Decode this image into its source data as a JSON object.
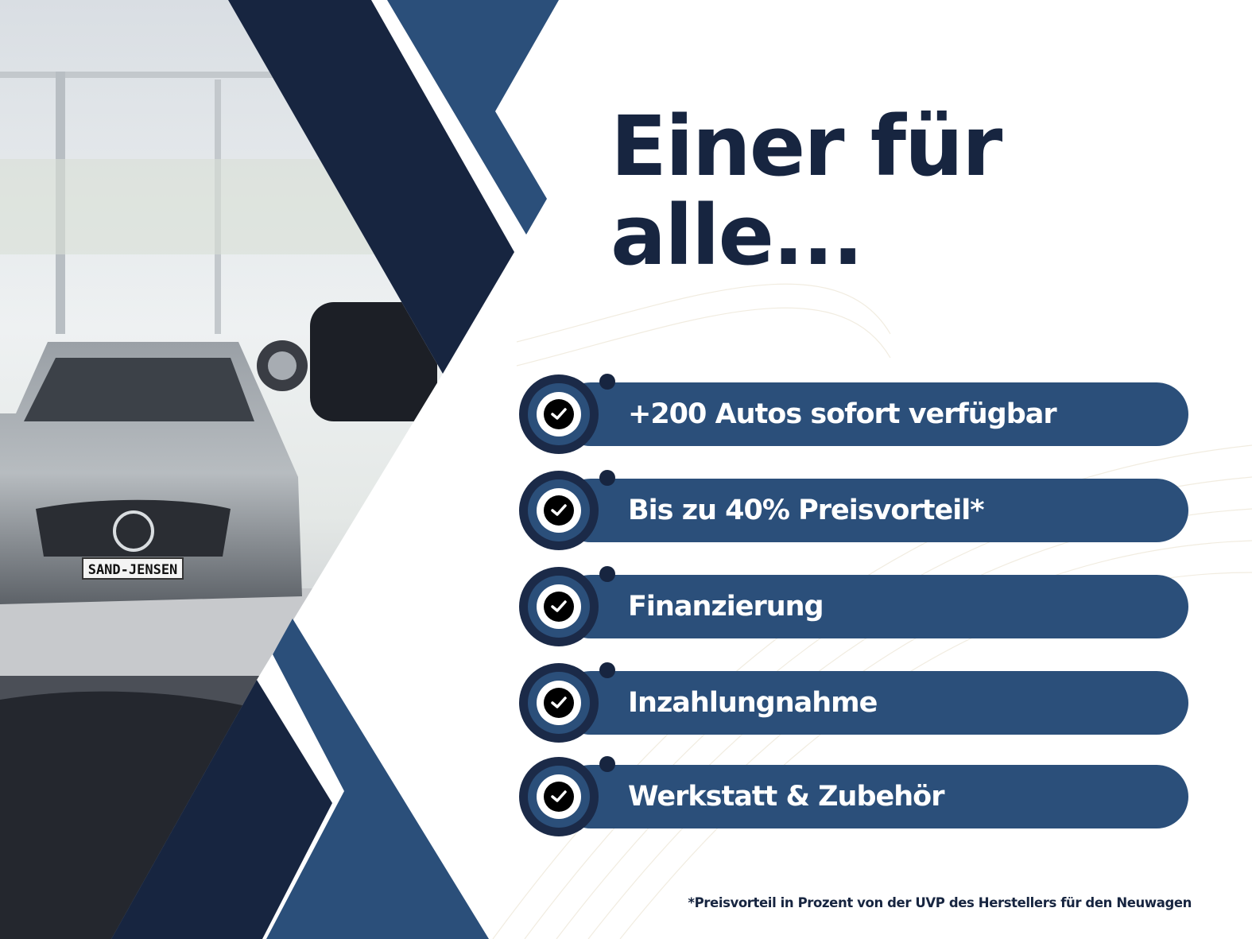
{
  "headline": {
    "line1": "Einer für",
    "line2": "alle..."
  },
  "features": [
    {
      "label": "+200 Autos sofort verfügbar",
      "icon": "check-circle-icon"
    },
    {
      "label": "Bis zu 40% Preisvorteil*",
      "icon": "check-circle-icon"
    },
    {
      "label": "Finanzierung",
      "icon": "check-circle-icon"
    },
    {
      "label": "Inzahlungnahme",
      "icon": "check-circle-icon"
    },
    {
      "label": "Werkstatt & Zubehör",
      "icon": "check-circle-icon"
    }
  ],
  "footnote": "*Preisvorteil in Prozent von der UVP des Herstellers für den Neuwagen",
  "photo": {
    "plate_text": "SAND-JENSEN"
  },
  "colors": {
    "navy": "#172540",
    "blue": "#2b4f7a",
    "white": "#ffffff"
  }
}
